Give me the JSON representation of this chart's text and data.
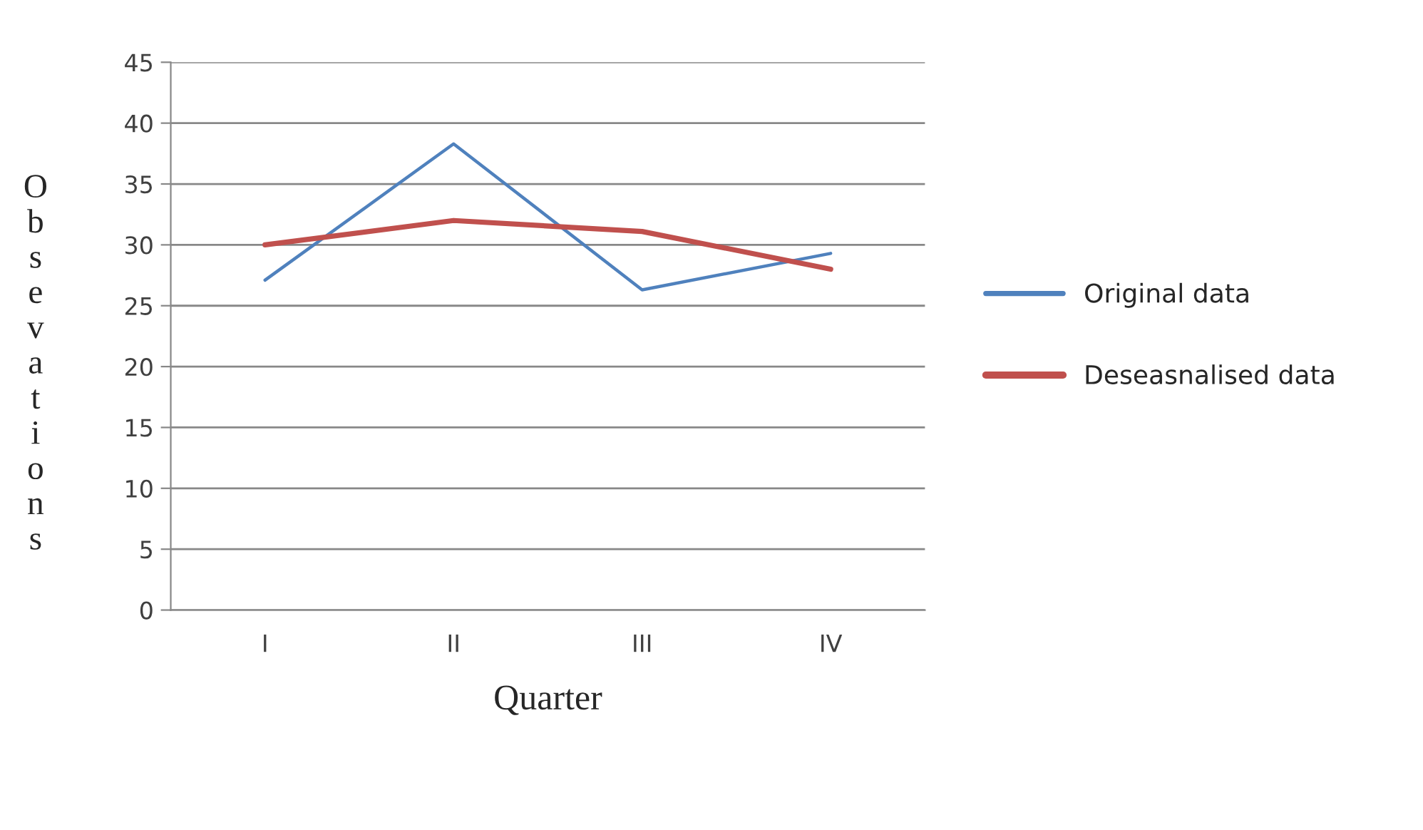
{
  "chart_data": {
    "type": "line",
    "xlabel": "Quarter",
    "ylabel": "Obsevations",
    "categories": [
      "I",
      "II",
      "III",
      "IV"
    ],
    "series": [
      {
        "name": "Original data",
        "color": "#4f81bd",
        "values": [
          27.1,
          38.3,
          26.3,
          29.3
        ]
      },
      {
        "name": "Deseasnalised data",
        "color": "#c0504d",
        "values": [
          30.0,
          32.0,
          31.1,
          28.0
        ]
      }
    ],
    "ylim": [
      0,
      45
    ],
    "yticks": [
      0,
      5,
      10,
      15,
      20,
      25,
      30,
      35,
      40,
      45
    ],
    "grid": "y",
    "legend": "right",
    "marker": "none",
    "line_style": "solid"
  }
}
